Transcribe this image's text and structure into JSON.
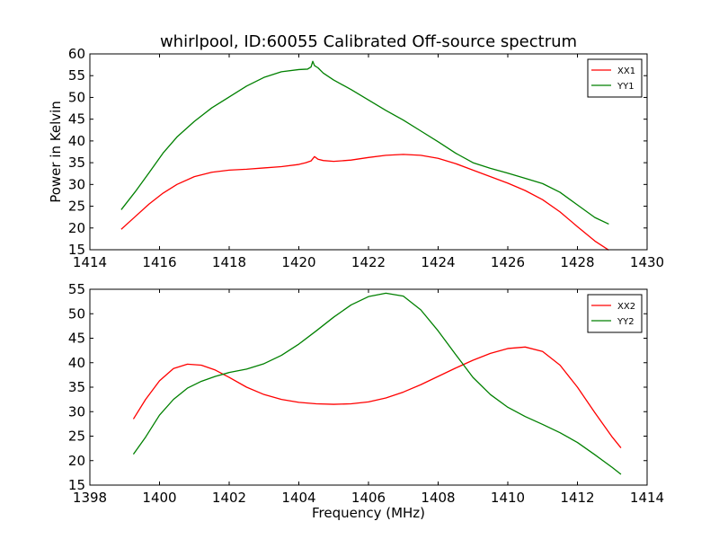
{
  "chart_data": [
    {
      "type": "line",
      "title": "whirlpool, ID:60055 Calibrated Off-source spectrum",
      "xlabel": "",
      "ylabel": "Power in Kelvin",
      "xlim": [
        1414,
        1430
      ],
      "ylim": [
        15,
        60
      ],
      "xticks": [
        1414,
        1416,
        1418,
        1420,
        1422,
        1424,
        1426,
        1428,
        1430
      ],
      "yticks": [
        15,
        20,
        25,
        30,
        35,
        40,
        45,
        50,
        55,
        60
      ],
      "legend": {
        "position": "top-right"
      },
      "grid": false,
      "series": [
        {
          "name": "XX1",
          "color": "#ff0000",
          "x": [
            1414.9,
            1415.3,
            1415.7,
            1416.1,
            1416.5,
            1417.0,
            1417.5,
            1418.0,
            1418.5,
            1419.0,
            1419.5,
            1420.0,
            1420.2,
            1420.35,
            1420.45,
            1420.55,
            1420.7,
            1421.0,
            1421.5,
            1422.0,
            1422.5,
            1423.0,
            1423.5,
            1424.0,
            1424.5,
            1425.0,
            1425.5,
            1426.0,
            1426.5,
            1427.0,
            1427.5,
            1428.0,
            1428.5,
            1428.9
          ],
          "y": [
            19.7,
            22.6,
            25.5,
            28.0,
            30.0,
            31.8,
            32.8,
            33.3,
            33.5,
            33.8,
            34.1,
            34.6,
            35.0,
            35.4,
            36.4,
            35.8,
            35.5,
            35.3,
            35.6,
            36.2,
            36.7,
            36.9,
            36.7,
            36.0,
            34.8,
            33.3,
            31.8,
            30.3,
            28.6,
            26.5,
            23.7,
            20.3,
            17.0,
            14.9
          ]
        },
        {
          "name": "YY1",
          "color": "#008000",
          "x": [
            1414.9,
            1415.3,
            1415.7,
            1416.1,
            1416.5,
            1417.0,
            1417.5,
            1418.0,
            1418.5,
            1419.0,
            1419.5,
            1420.0,
            1420.25,
            1420.35,
            1420.4,
            1420.45,
            1420.55,
            1420.7,
            1421.0,
            1421.5,
            1422.0,
            1422.5,
            1423.0,
            1423.5,
            1424.0,
            1424.5,
            1425.0,
            1425.5,
            1426.0,
            1426.5,
            1427.0,
            1427.5,
            1428.0,
            1428.5,
            1428.9
          ],
          "y": [
            24.2,
            28.3,
            32.7,
            37.2,
            40.9,
            44.5,
            47.6,
            50.1,
            52.6,
            54.6,
            55.9,
            56.4,
            56.5,
            57.0,
            58.3,
            57.3,
            56.8,
            55.6,
            54.0,
            51.8,
            49.4,
            47.0,
            44.8,
            42.3,
            39.8,
            37.2,
            35.0,
            33.7,
            32.6,
            31.4,
            30.2,
            28.2,
            25.3,
            22.4,
            20.9
          ]
        }
      ]
    },
    {
      "type": "line",
      "title": "",
      "xlabel": "Frequency (MHz)",
      "ylabel": "",
      "xlim": [
        1398,
        1414
      ],
      "ylim": [
        15,
        55
      ],
      "xticks": [
        1398,
        1400,
        1402,
        1404,
        1406,
        1408,
        1410,
        1412,
        1414
      ],
      "yticks": [
        15,
        20,
        25,
        30,
        35,
        40,
        45,
        50,
        55
      ],
      "legend": {
        "position": "top-right"
      },
      "grid": false,
      "series": [
        {
          "name": "XX2",
          "color": "#ff0000",
          "x": [
            1399.25,
            1399.6,
            1400.0,
            1400.4,
            1400.8,
            1401.2,
            1401.6,
            1402.0,
            1402.5,
            1403.0,
            1403.5,
            1404.0,
            1404.5,
            1405.0,
            1405.5,
            1406.0,
            1406.5,
            1407.0,
            1407.5,
            1408.0,
            1408.5,
            1409.0,
            1409.5,
            1410.0,
            1410.5,
            1411.0,
            1411.5,
            1412.0,
            1412.5,
            1413.0,
            1413.25
          ],
          "y": [
            28.5,
            32.5,
            36.3,
            38.8,
            39.7,
            39.5,
            38.5,
            37.0,
            35.0,
            33.5,
            32.5,
            31.9,
            31.6,
            31.5,
            31.6,
            32.0,
            32.8,
            34.0,
            35.5,
            37.2,
            38.9,
            40.5,
            41.9,
            42.9,
            43.2,
            42.3,
            39.5,
            35.0,
            29.8,
            24.8,
            22.6
          ]
        },
        {
          "name": "YY2",
          "color": "#008000",
          "x": [
            1399.25,
            1399.6,
            1400.0,
            1400.4,
            1400.8,
            1401.2,
            1401.6,
            1402.0,
            1402.5,
            1403.0,
            1403.5,
            1404.0,
            1404.5,
            1405.0,
            1405.5,
            1406.0,
            1406.5,
            1407.0,
            1407.5,
            1408.0,
            1408.5,
            1409.0,
            1409.5,
            1410.0,
            1410.5,
            1411.0,
            1411.5,
            1412.0,
            1412.5,
            1413.0,
            1413.25
          ],
          "y": [
            21.3,
            24.8,
            29.3,
            32.5,
            34.8,
            36.2,
            37.2,
            38.0,
            38.7,
            39.8,
            41.5,
            43.8,
            46.5,
            49.3,
            51.8,
            53.5,
            54.2,
            53.6,
            50.8,
            46.5,
            41.7,
            37.0,
            33.5,
            30.9,
            29.0,
            27.4,
            25.7,
            23.7,
            21.2,
            18.6,
            17.2
          ]
        }
      ]
    }
  ]
}
